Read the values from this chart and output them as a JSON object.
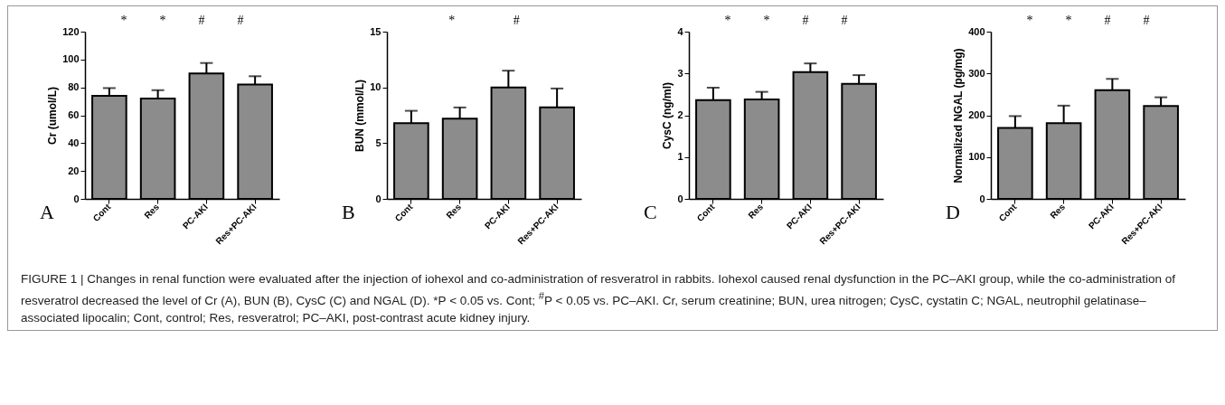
{
  "chart_data": [
    {
      "type": "bar",
      "title": "A",
      "ylabel": "Cr (umol/L)",
      "categories": [
        "Cont",
        "Res",
        "PC-AKI",
        "Res+PC-AKI"
      ],
      "values": [
        74,
        72,
        90,
        82
      ],
      "errors": [
        5.5,
        6,
        7.5,
        6
      ],
      "color": "#8c8c8c",
      "ylim": [
        0,
        120
      ],
      "yticks": [
        0,
        20,
        40,
        60,
        80,
        100,
        120
      ],
      "annotations": [
        "*",
        "*",
        "#",
        "#"
      ]
    },
    {
      "type": "bar",
      "title": "B",
      "ylabel": "BUN (mmol/L)",
      "categories": [
        "Cont",
        "Res",
        "PC-AKI",
        "Res+PC-AKI"
      ],
      "values": [
        6.8,
        7.2,
        10.0,
        8.2
      ],
      "errors": [
        1.1,
        1.0,
        1.5,
        1.7
      ],
      "color": "#8c8c8c",
      "ylim": [
        0,
        15
      ],
      "yticks": [
        0,
        5,
        10,
        15
      ],
      "annotations": [
        "*",
        "#"
      ]
    },
    {
      "type": "bar",
      "title": "C",
      "ylabel": "CysC (ng/ml)",
      "categories": [
        "Cont",
        "Res",
        "PC-AKI",
        "Res+PC-AKI"
      ],
      "values": [
        2.36,
        2.38,
        3.03,
        2.75
      ],
      "errors": [
        0.3,
        0.18,
        0.21,
        0.21
      ],
      "color": "#8c8c8c",
      "ylim": [
        0,
        4
      ],
      "yticks": [
        0,
        1,
        2,
        3,
        4
      ],
      "annotations": [
        "*",
        "*",
        "#",
        "#"
      ]
    },
    {
      "type": "bar",
      "title": "D",
      "ylabel": "Normalized NGAL (pg/mg)",
      "categories": [
        "Cont",
        "Res",
        "PC-AKI",
        "Res+PC-AKI"
      ],
      "values": [
        170,
        181,
        260,
        222
      ],
      "errors": [
        28,
        42,
        27,
        21
      ],
      "color": "#8c8c8c",
      "ylim": [
        0,
        400
      ],
      "yticks": [
        0,
        100,
        200,
        300,
        400
      ],
      "annotations": [
        "*",
        "*",
        "#",
        "#"
      ]
    },
    {
      "type": "other",
      "annotations": [
        "FIGURE 1 | Changes in renal function were evaluated after the injection of iohexol and co-administration of resveratrol in rabbits. Iohexol caused renal dysfunction in the PC–AKI group, while the co-administration of resveratrol decreased the level of Cr (A), BUN (B), CysC (C) and NGAL (D). *P < 0.05 vs. Cont; $^{#}$P < 0.05 vs. PC–AKI. Cr, serum creatinine; BUN, urea nitrogen; CysC, cystatin C; NGAL, neutrophil gelatinase–associated lipocalin; Cont, control; Res, resveratrol; PC–AKI, post-contrast acute kidney injury."
      ]
    }
  ]
}
